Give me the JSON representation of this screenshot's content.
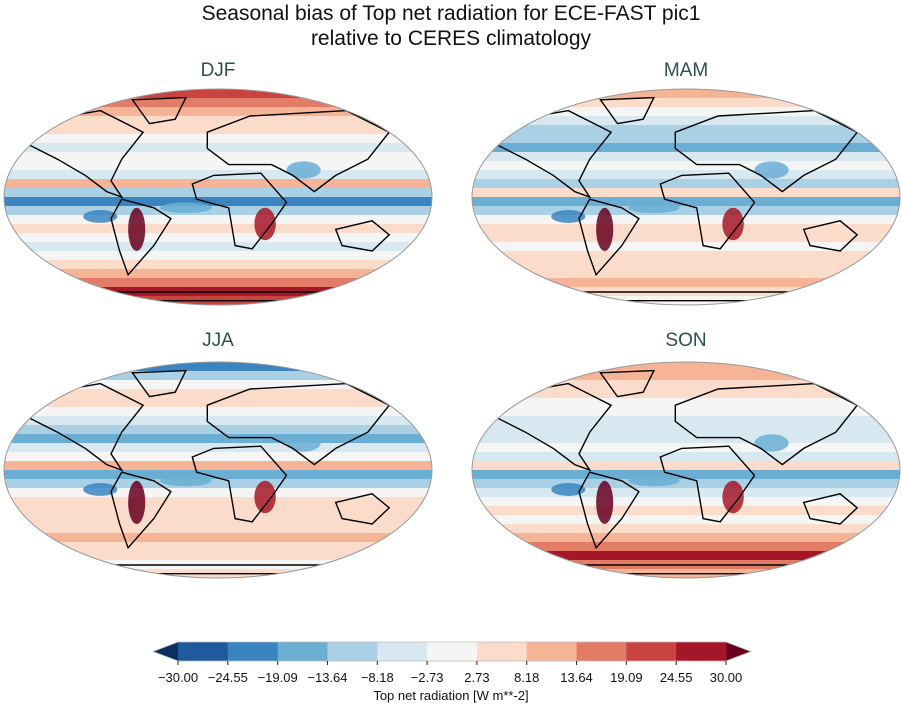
{
  "title_line1": "Seasonal bias of Top net radiation for ECE-FAST pic1",
  "title_line2": "relative to CERES climatology",
  "panels": [
    {
      "label": "DJF"
    },
    {
      "label": "MAM"
    },
    {
      "label": "JJA"
    },
    {
      "label": "SON"
    }
  ],
  "colorbar": {
    "label": "Top net radiation [W m**-2]",
    "ticks": [
      "−30.00",
      "−24.55",
      "−19.09",
      "−13.64",
      "−8.18",
      "−2.73",
      "2.73",
      "8.18",
      "13.64",
      "19.09",
      "24.55",
      "30.00"
    ],
    "range": [
      -30,
      30
    ],
    "extend": "both",
    "colormap": "RdBu_r",
    "under_color": "#0a3061",
    "over_color": "#67001f",
    "colors": [
      "#1f5a9c",
      "#3a85bf",
      "#6aaed4",
      "#a9d0e5",
      "#d8e8f1",
      "#f5f5f5",
      "#fbdccb",
      "#f6b496",
      "#e27c66",
      "#c94441",
      "#a51728"
    ]
  }
}
